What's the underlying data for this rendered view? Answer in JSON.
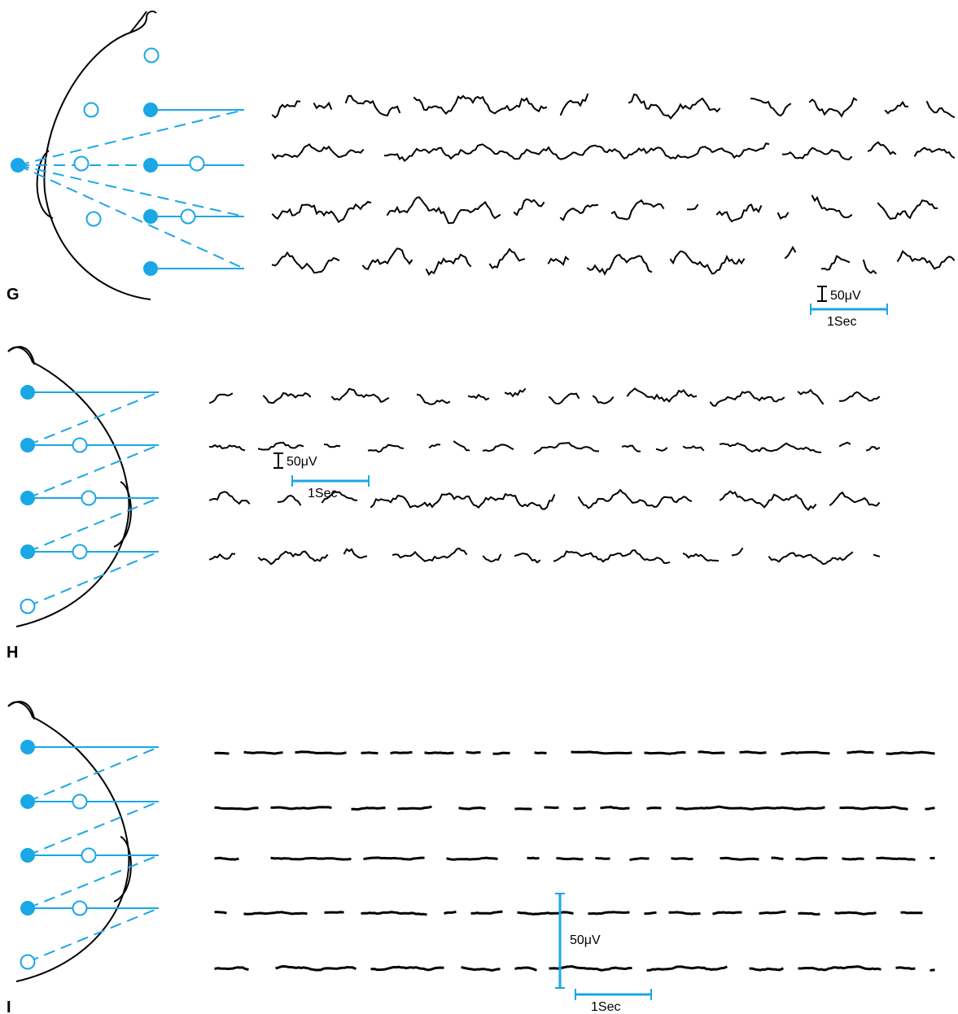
{
  "colors": {
    "electrode": "#1aa7e6",
    "trace": "#000000",
    "outline": "#000000",
    "background": "#ffffff"
  },
  "panels": [
    {
      "label": "G",
      "scale_voltage": "50μV",
      "scale_time": "1Sec",
      "channels": 4
    },
    {
      "label": "H",
      "scale_voltage": "50μV",
      "scale_time": "1Sec",
      "channels": 4
    },
    {
      "label": "I",
      "scale_voltage": "50μV",
      "scale_time": "1Sec",
      "channels": 5
    }
  ]
}
